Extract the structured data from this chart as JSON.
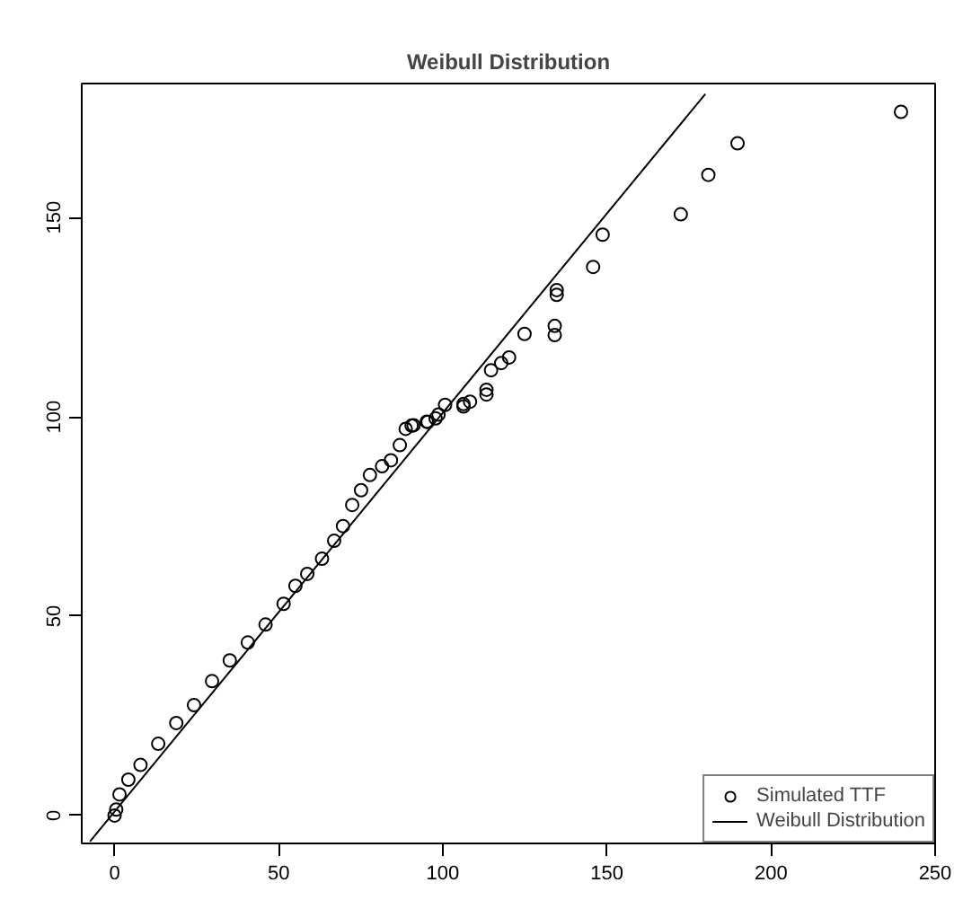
{
  "chart_data": {
    "type": "scatter",
    "title": "Weibull Distribution",
    "xlim": [
      -10,
      250
    ],
    "ylim": [
      -7,
      183.6
    ],
    "xticks": [
      0,
      50,
      100,
      150,
      200,
      250
    ],
    "yticks": [
      0,
      50,
      100,
      150
    ],
    "grid": false,
    "legend": "bottom right",
    "marker": "circle",
    "series": [
      {
        "name": "Simulated TTF",
        "color": "#000000",
        "x": [
          0,
          0.5,
          1.5,
          4.2,
          7.9,
          13.3,
          18.8,
          24.2,
          29.7,
          35.1,
          40.6,
          46.0,
          51.5,
          55.1,
          58.7,
          63.2,
          66.9,
          69.6,
          72.4,
          75.1,
          77.8,
          81.5,
          84.2,
          86.9,
          88.7,
          90.5,
          91.1,
          95.1,
          95.4,
          97.8,
          98.7,
          100.7,
          106.3,
          106.3,
          108.3,
          113.3,
          113.3,
          114.7,
          117.8,
          120.2,
          124.9,
          134.1,
          134.1,
          134.7,
          134.7,
          145.8,
          148.7,
          172.5,
          180.9,
          189.8,
          239.6
        ],
        "values": [
          0,
          1.5,
          5.3,
          9.0,
          12.7,
          18.0,
          23.2,
          27.7,
          33.7,
          38.9,
          43.4,
          47.9,
          53.1,
          57.6,
          60.6,
          64.4,
          68.9,
          72.6,
          77.9,
          81.6,
          85.4,
          87.6,
          89.1,
          92.9,
          97.0,
          97.8,
          97.9,
          98.8,
          98.7,
          99.6,
          100.6,
          103.0,
          102.6,
          103.2,
          103.8,
          105.6,
          106.8,
          111.7,
          113.5,
          114.9,
          120.8,
          120.5,
          122.8,
          130.6,
          131.8,
          137.6,
          145.7,
          150.8,
          160.7,
          168.6,
          176.5
        ]
      },
      {
        "name": "Weibull Distribution",
        "type": "line",
        "marker": "none",
        "color": "#000000",
        "x": [
          -7.5,
          180
        ],
        "values": [
          -6.5,
          181
        ]
      }
    ]
  }
}
